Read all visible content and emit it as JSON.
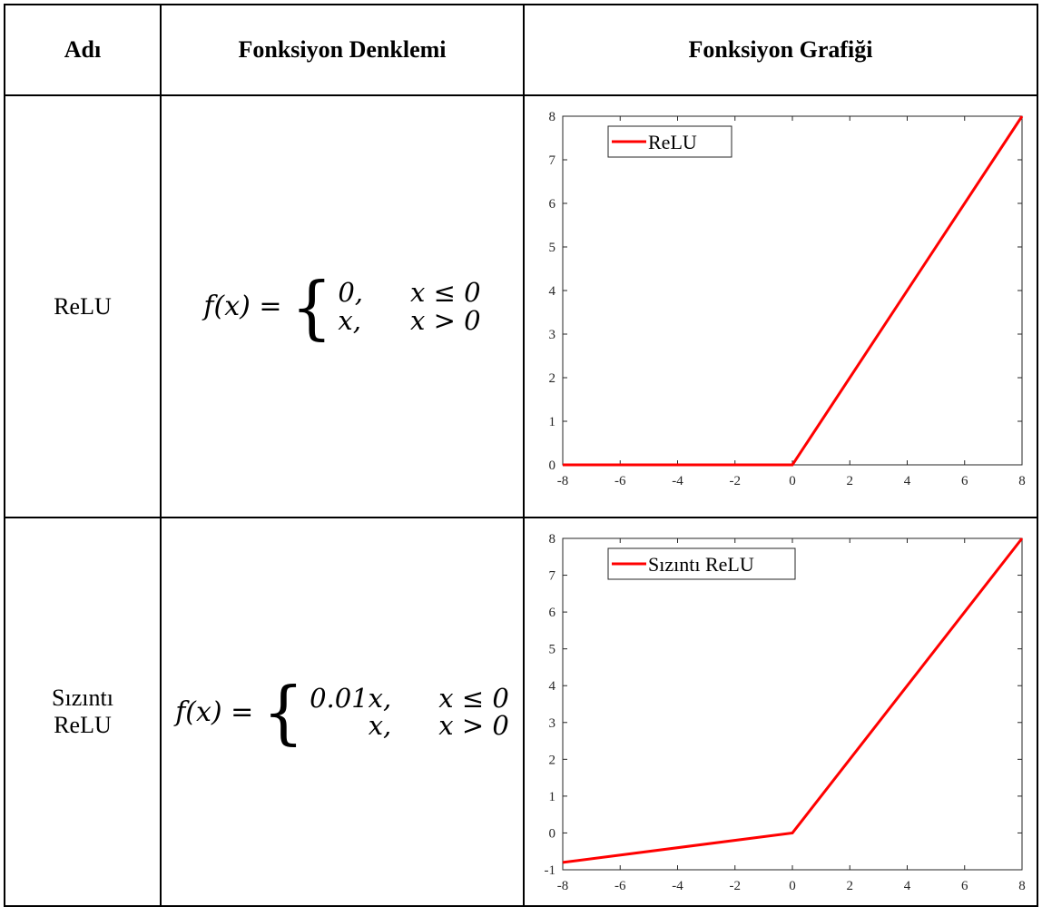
{
  "table": {
    "headers": [
      "Adı",
      "Fonksiyon Denklemi",
      "Fonksiyon Grafiği"
    ],
    "rows": [
      {
        "name_lines": [
          "ReLU"
        ],
        "equation": {
          "lhs": "f(x) = ",
          "cases": [
            {
              "value": "0,",
              "condition": "x ≤ 0"
            },
            {
              "value": "x,",
              "condition": "x > 0"
            }
          ]
        }
      },
      {
        "name_lines": [
          "Sızıntı",
          "ReLU"
        ],
        "equation": {
          "lhs": "f(x) = ",
          "cases": [
            {
              "value": "0.01x,",
              "condition": "x ≤ 0"
            },
            {
              "value": "x,",
              "condition": "x > 0"
            }
          ]
        }
      }
    ]
  },
  "chart_data": [
    {
      "type": "line",
      "legend": "ReLU",
      "legend_position": "top-left",
      "color": "#ff0000",
      "x": [
        -8,
        0,
        8
      ],
      "y": [
        0,
        0,
        8
      ],
      "xlim": [
        -8,
        8
      ],
      "ylim": [
        0,
        8
      ],
      "xticks": [
        -8,
        -6,
        -4,
        -2,
        0,
        2,
        4,
        6,
        8
      ],
      "yticks": [
        0,
        1,
        2,
        3,
        4,
        5,
        6,
        7,
        8
      ],
      "grid": false
    },
    {
      "type": "line",
      "legend": "Sızıntı ReLU",
      "legend_position": "top-left",
      "color": "#ff0000",
      "x": [
        -8,
        0,
        8
      ],
      "y": [
        -0.8,
        0,
        8
      ],
      "xlim": [
        -8,
        8
      ],
      "ylim": [
        -1,
        8
      ],
      "xticks": [
        -8,
        -6,
        -4,
        -2,
        0,
        2,
        4,
        6,
        8
      ],
      "yticks": [
        -1,
        0,
        1,
        2,
        3,
        4,
        5,
        6,
        7,
        8
      ],
      "grid": false
    }
  ]
}
